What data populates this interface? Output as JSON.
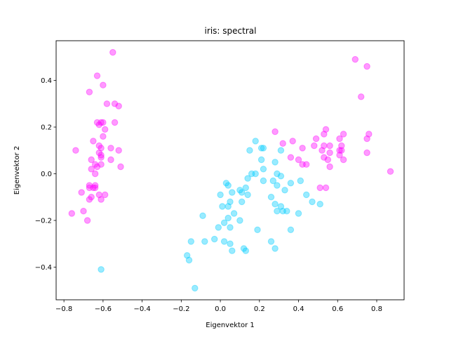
{
  "chart_data": {
    "type": "scatter",
    "title": "iris: spectral",
    "xlabel": "Eigenvektor 1",
    "ylabel": "Eigenvektor 2",
    "xlim": [
      -0.84,
      0.94
    ],
    "ylim": [
      -0.54,
      0.57
    ],
    "xticks": [
      -0.8,
      -0.6,
      -0.4,
      -0.2,
      0.0,
      0.2,
      0.4,
      0.6,
      0.8
    ],
    "xtick_labels": [
      "−0.8",
      "−0.6",
      "−0.4",
      "−0.2",
      "0.0",
      "0.2",
      "0.4",
      "0.6",
      "0.8"
    ],
    "yticks": [
      -0.4,
      -0.2,
      0.0,
      0.2,
      0.4
    ],
    "ytick_labels": [
      "−0.4",
      "−0.2",
      "0.0",
      "0.2",
      "0.4"
    ],
    "grid": false,
    "colors": {
      "magenta": "#ff00ff",
      "cyan": "#00ccff"
    },
    "series": [
      {
        "color": "#ff00ff",
        "points": [
          [
            -0.55,
            0.52
          ],
          [
            -0.63,
            0.42
          ],
          [
            -0.6,
            0.38
          ],
          [
            -0.67,
            0.35
          ],
          [
            -0.58,
            0.3
          ],
          [
            -0.54,
            0.3
          ],
          [
            -0.52,
            0.29
          ],
          [
            -0.63,
            0.22
          ],
          [
            -0.61,
            0.22
          ],
          [
            -0.6,
            0.22
          ],
          [
            -0.54,
            0.22
          ],
          [
            -0.62,
            0.21
          ],
          [
            -0.59,
            0.19
          ],
          [
            -0.6,
            0.16
          ],
          [
            -0.65,
            0.14
          ],
          [
            -0.62,
            0.12
          ],
          [
            -0.61,
            0.11
          ],
          [
            -0.56,
            0.11
          ],
          [
            -0.52,
            0.1
          ],
          [
            -0.74,
            0.1
          ],
          [
            -0.62,
            0.09
          ],
          [
            -0.61,
            0.08
          ],
          [
            -0.61,
            0.07
          ],
          [
            -0.66,
            0.06
          ],
          [
            -0.56,
            0.06
          ],
          [
            -0.64,
            0.04
          ],
          [
            -0.61,
            0.04
          ],
          [
            -0.51,
            0.03
          ],
          [
            -0.63,
            0.03
          ],
          [
            -0.66,
            0.02
          ],
          [
            -0.64,
            0.0
          ],
          [
            -0.64,
            -0.05
          ],
          [
            -0.67,
            -0.05
          ],
          [
            -0.67,
            -0.06
          ],
          [
            -0.65,
            -0.06
          ],
          [
            -0.64,
            -0.06
          ],
          [
            -0.71,
            -0.08
          ],
          [
            -0.59,
            -0.09
          ],
          [
            -0.62,
            -0.09
          ],
          [
            -0.66,
            -0.1
          ],
          [
            -0.61,
            -0.11
          ],
          [
            -0.67,
            -0.11
          ],
          [
            -0.7,
            -0.16
          ],
          [
            -0.76,
            -0.17
          ],
          [
            -0.68,
            -0.2
          ],
          [
            0.69,
            0.49
          ],
          [
            0.75,
            0.46
          ],
          [
            0.72,
            0.33
          ],
          [
            0.28,
            0.18
          ],
          [
            0.54,
            0.19
          ],
          [
            0.53,
            0.17
          ],
          [
            0.63,
            0.17
          ],
          [
            0.76,
            0.17
          ],
          [
            0.61,
            0.15
          ],
          [
            0.75,
            0.15
          ],
          [
            0.49,
            0.15
          ],
          [
            0.37,
            0.14
          ],
          [
            0.32,
            0.13
          ],
          [
            0.53,
            0.12
          ],
          [
            0.56,
            0.12
          ],
          [
            0.62,
            0.12
          ],
          [
            0.42,
            0.11
          ],
          [
            0.48,
            0.12
          ],
          [
            0.61,
            0.1
          ],
          [
            0.62,
            0.1
          ],
          [
            0.52,
            0.1
          ],
          [
            0.56,
            0.09
          ],
          [
            0.75,
            0.09
          ],
          [
            0.61,
            0.08
          ],
          [
            0.53,
            0.07
          ],
          [
            0.36,
            0.07
          ],
          [
            0.55,
            0.06
          ],
          [
            0.4,
            0.06
          ],
          [
            0.63,
            0.06
          ],
          [
            0.42,
            0.04
          ],
          [
            0.44,
            0.04
          ],
          [
            0.56,
            0.03
          ],
          [
            0.87,
            0.01
          ],
          [
            0.51,
            -0.06
          ],
          [
            0.54,
            -0.06
          ]
        ]
      },
      {
        "color": "#00ccff",
        "points": [
          [
            0.18,
            0.14
          ],
          [
            0.21,
            0.11
          ],
          [
            0.22,
            0.11
          ],
          [
            0.15,
            0.1
          ],
          [
            0.31,
            0.1
          ],
          [
            0.28,
            0.05
          ],
          [
            0.21,
            0.06
          ],
          [
            0.22,
            0.02
          ],
          [
            0.16,
            0.0
          ],
          [
            0.18,
            0.0
          ],
          [
            0.29,
            0.0
          ],
          [
            0.31,
            -0.01
          ],
          [
            0.14,
            -0.02
          ],
          [
            0.27,
            -0.03
          ],
          [
            0.36,
            -0.04
          ],
          [
            0.41,
            -0.03
          ],
          [
            0.03,
            -0.04
          ],
          [
            0.04,
            -0.05
          ],
          [
            0.13,
            -0.06
          ],
          [
            0.29,
            -0.05
          ],
          [
            0.33,
            -0.07
          ],
          [
            0.1,
            -0.07
          ],
          [
            0.11,
            -0.08
          ],
          [
            0.06,
            -0.08
          ],
          [
            0.14,
            -0.09
          ],
          [
            0.44,
            -0.09
          ],
          [
            0.0,
            -0.09
          ],
          [
            0.26,
            -0.1
          ],
          [
            0.05,
            -0.12
          ],
          [
            0.11,
            -0.12
          ],
          [
            0.47,
            -0.12
          ],
          [
            0.28,
            -0.13
          ],
          [
            0.51,
            -0.13
          ],
          [
            0.31,
            -0.14
          ],
          [
            0.01,
            -0.14
          ],
          [
            0.04,
            -0.14
          ],
          [
            0.32,
            -0.16
          ],
          [
            0.34,
            -0.16
          ],
          [
            0.29,
            -0.16
          ],
          [
            0.07,
            -0.17
          ],
          [
            0.4,
            -0.17
          ],
          [
            -0.09,
            -0.18
          ],
          [
            0.04,
            -0.19
          ],
          [
            0.02,
            -0.21
          ],
          [
            0.1,
            -0.2
          ],
          [
            -0.01,
            -0.23
          ],
          [
            0.05,
            -0.23
          ],
          [
            0.19,
            -0.24
          ],
          [
            0.36,
            -0.24
          ],
          [
            -0.15,
            -0.29
          ],
          [
            -0.03,
            -0.28
          ],
          [
            -0.08,
            -0.29
          ],
          [
            0.02,
            -0.29
          ],
          [
            0.26,
            -0.29
          ],
          [
            0.05,
            -0.3
          ],
          [
            0.12,
            -0.32
          ],
          [
            0.28,
            -0.32
          ],
          [
            -0.17,
            -0.35
          ],
          [
            -0.16,
            -0.37
          ],
          [
            -0.61,
            -0.41
          ],
          [
            -0.13,
            -0.49
          ],
          [
            0.13,
            -0.33
          ],
          [
            0.06,
            -0.33
          ],
          [
            0.22,
            -0.03
          ]
        ]
      }
    ]
  }
}
